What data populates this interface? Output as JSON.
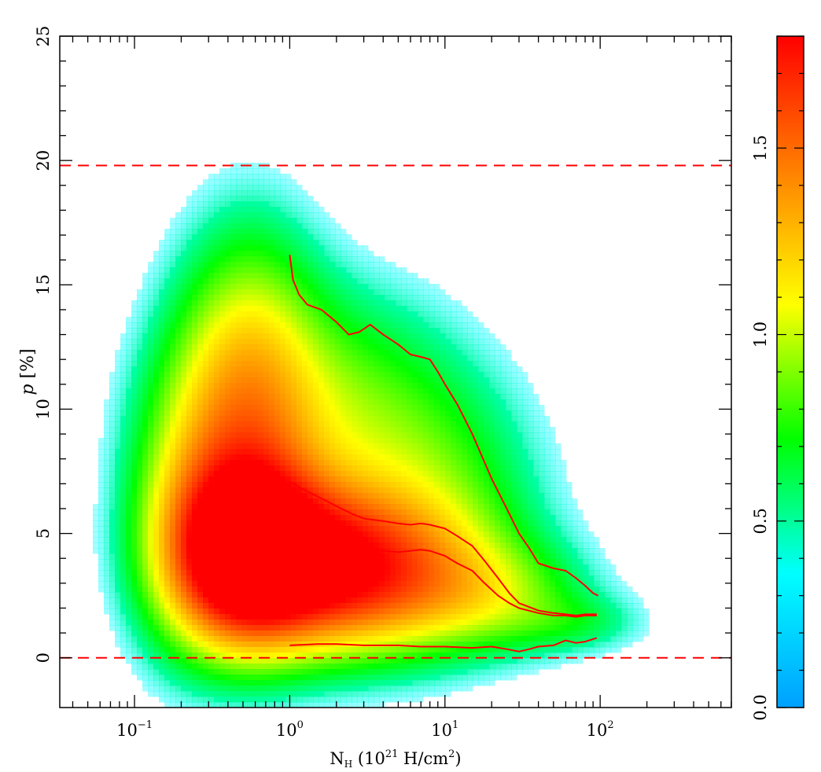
{
  "chart_data": [
    {
      "type": "heatmap",
      "title": "",
      "xlabel_base": "N",
      "xlabel_sub": "H",
      "xlabel_rest_open": " (10",
      "xlabel_exp": "21",
      "xlabel_rest_mid": " H/cm",
      "xlabel_exp2": "2",
      "xlabel_rest_close": ")",
      "ylabel_italic": "p",
      "ylabel_rest": " [%]",
      "x_scale": "log",
      "xlim": [
        0.033,
        700
      ],
      "ylim": [
        -2,
        25
      ],
      "x_ticks": [
        {
          "value": 0.1,
          "base": "10",
          "exp": "−1"
        },
        {
          "value": 1,
          "base": "10",
          "exp": "0"
        },
        {
          "value": 10,
          "base": "10",
          "exp": "1"
        },
        {
          "value": 100,
          "base": "10",
          "exp": "2"
        }
      ],
      "y_ticks": [
        {
          "value": 0,
          "label": "0"
        },
        {
          "value": 5,
          "label": "5"
        },
        {
          "value": 10,
          "label": "10"
        },
        {
          "value": 15,
          "label": "15"
        },
        {
          "value": 20,
          "label": "20"
        },
        {
          "value": 25,
          "label": "25"
        }
      ],
      "reference_lines": [
        {
          "y": 0,
          "color": "#ff0000",
          "style": "dashed"
        },
        {
          "y": 19.8,
          "color": "#ff0000",
          "style": "dashed"
        }
      ],
      "density_colormap": "rainbow (blue-cyan-green-yellow-red)",
      "density_blobs": [
        {
          "x": 0.5,
          "y": 4.2,
          "sx": 0.3,
          "sy": 2.4,
          "w": 1.0
        },
        {
          "x": 1.4,
          "y": 3.8,
          "sx": 0.45,
          "sy": 2.2,
          "w": 0.65
        },
        {
          "x": 3.5,
          "y": 3.3,
          "sx": 0.55,
          "sy": 2.0,
          "w": 0.45
        },
        {
          "x": 0.45,
          "y": 8.5,
          "sx": 0.35,
          "sy": 3.6,
          "w": 0.45
        },
        {
          "x": 0.55,
          "y": 13.0,
          "sx": 0.3,
          "sy": 3.5,
          "w": 0.22
        },
        {
          "x": 2.0,
          "y": 10.0,
          "sx": 0.5,
          "sy": 3.2,
          "w": 0.22
        },
        {
          "x": 8.0,
          "y": 6.5,
          "sx": 0.45,
          "sy": 3.2,
          "w": 0.2
        },
        {
          "x": 20.0,
          "y": 2.5,
          "sx": 0.4,
          "sy": 1.4,
          "w": 0.2
        },
        {
          "x": 70.0,
          "y": 1.4,
          "sx": 0.3,
          "sy": 0.8,
          "w": 0.1
        },
        {
          "x": 0.2,
          "y": 5.0,
          "sx": 0.25,
          "sy": 3.5,
          "w": 0.15
        }
      ],
      "series": [
        {
          "color": "#ff0000",
          "x": [
            1.0,
            1.05,
            1.15,
            1.3,
            1.6,
            2.0,
            2.4,
            2.8,
            3.3,
            4.0,
            5.0,
            6.0,
            7.0,
            8.0,
            9.0,
            10.0,
            12.0,
            15.0,
            20.0,
            25.0,
            30.0,
            35.0,
            40.0,
            50.0,
            60.0,
            70.0,
            80.0,
            90.0,
            97.0
          ],
          "y": [
            16.2,
            15.2,
            14.6,
            14.2,
            14.0,
            13.5,
            13.0,
            13.1,
            13.4,
            13.0,
            12.6,
            12.2,
            12.1,
            12.0,
            11.5,
            11.0,
            10.2,
            9.0,
            7.2,
            6.0,
            5.0,
            4.4,
            3.8,
            3.6,
            3.5,
            3.2,
            2.9,
            2.6,
            2.5
          ]
        },
        {
          "color": "#ff0000",
          "x": [
            1.0,
            1.2,
            1.5,
            2.0,
            2.5,
            3.0,
            4.0,
            5.0,
            6.0,
            7.0,
            8.0,
            10.0,
            12.0,
            15.0,
            18.0,
            22.0,
            26.0,
            30.0,
            40.0,
            50.0,
            60.0,
            70.0,
            80.0,
            95.0
          ],
          "y": [
            7.1,
            6.8,
            6.5,
            6.1,
            5.8,
            5.6,
            5.5,
            5.4,
            5.35,
            5.4,
            5.35,
            5.2,
            4.9,
            4.5,
            3.9,
            3.2,
            2.6,
            2.2,
            1.9,
            1.8,
            1.75,
            1.7,
            1.75,
            1.75
          ]
        },
        {
          "color": "#ff0000",
          "x": [
            1.0,
            1.2,
            1.5,
            2.0,
            2.5,
            3.0,
            4.0,
            5.0,
            6.0,
            7.0,
            8.0,
            10.0,
            12.0,
            15.0,
            18.0,
            22.0,
            26.0,
            30.0,
            40.0,
            50.0,
            60.0,
            70.0,
            80.0,
            95.0
          ],
          "y": [
            5.4,
            5.3,
            5.1,
            4.8,
            4.6,
            4.4,
            4.3,
            4.25,
            4.3,
            4.35,
            4.3,
            4.1,
            3.8,
            3.5,
            3.0,
            2.5,
            2.2,
            2.0,
            1.8,
            1.7,
            1.7,
            1.65,
            1.7,
            1.7
          ]
        },
        {
          "color": "#ff0000",
          "x": [
            1.0,
            1.5,
            2.0,
            3.0,
            5.0,
            7.0,
            10.0,
            15.0,
            20.0,
            25.0,
            30.0,
            35.0,
            40.0,
            50.0,
            60.0,
            70.0,
            80.0,
            95.0
          ],
          "y": [
            0.5,
            0.55,
            0.55,
            0.5,
            0.5,
            0.45,
            0.45,
            0.4,
            0.45,
            0.35,
            0.25,
            0.35,
            0.45,
            0.5,
            0.7,
            0.6,
            0.65,
            0.8
          ]
        }
      ],
      "colorbar": {
        "vmin": 0.0,
        "vmax": 1.8,
        "ticks": [
          {
            "value": 0.0,
            "label": "0.0"
          },
          {
            "value": 0.5,
            "label": "0.5"
          },
          {
            "value": 1.0,
            "label": "1.0"
          },
          {
            "value": 1.5,
            "label": "1.5"
          }
        ],
        "colors": [
          "#00a0ff",
          "#00ffff",
          "#00ff00",
          "#ffff00",
          "#ff8000",
          "#ff0000"
        ]
      }
    }
  ]
}
